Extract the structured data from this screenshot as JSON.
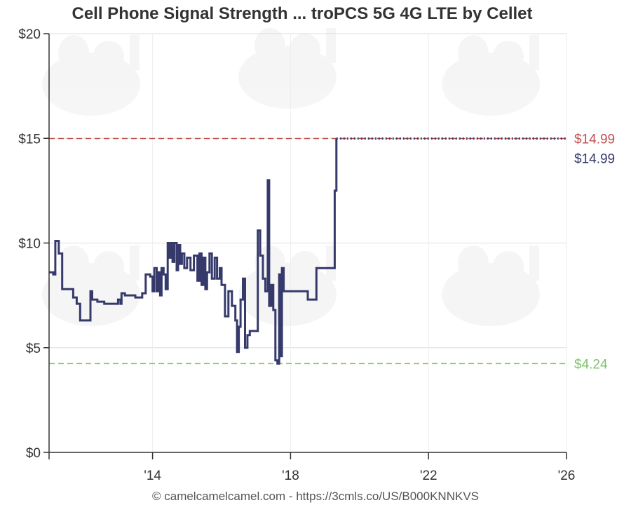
{
  "chart_data": {
    "type": "line",
    "title": "Cell Phone Signal Strength ... troPCS 5G 4G LTE by Cellet",
    "xlabel": "",
    "ylabel": "",
    "xlim": [
      2011.0,
      2026.0
    ],
    "ylim": [
      0,
      20
    ],
    "y_ticks": [
      0,
      5,
      10,
      15,
      20
    ],
    "y_tick_labels": [
      "$0",
      "$5",
      "$10",
      "$15",
      "$20"
    ],
    "x_ticks": [
      2014,
      2018,
      2022,
      2026
    ],
    "x_tick_labels": [
      "'14",
      "'18",
      "'22",
      "'26"
    ],
    "grid": true,
    "colors": {
      "series": "#363a6b",
      "highest": "#c0504d",
      "lowest": "#7dc36c",
      "current_label": "#363a6b",
      "grid": "#dddddd",
      "axis": "#333333"
    },
    "reference_lines": [
      {
        "value": 14.99,
        "label": "$14.99",
        "color": "#c0504d",
        "style": "dashed"
      },
      {
        "value": 4.24,
        "label": "$4.24",
        "color": "#7dc36c",
        "style": "dashed"
      }
    ],
    "current_price_label": "$14.99",
    "series": [
      {
        "values": [
          [
            2011.0,
            8.6
          ],
          [
            2011.12,
            8.6
          ],
          [
            2011.12,
            8.5
          ],
          [
            2011.18,
            8.5
          ],
          [
            2011.18,
            10.1
          ],
          [
            2011.28,
            10.1
          ],
          [
            2011.28,
            9.5
          ],
          [
            2011.38,
            9.5
          ],
          [
            2011.38,
            7.8
          ],
          [
            2011.7,
            7.8
          ],
          [
            2011.7,
            7.4
          ],
          [
            2011.8,
            7.4
          ],
          [
            2011.8,
            7.1
          ],
          [
            2011.9,
            7.1
          ],
          [
            2011.9,
            6.3
          ],
          [
            2012.2,
            6.3
          ],
          [
            2012.2,
            7.7
          ],
          [
            2012.25,
            7.7
          ],
          [
            2012.25,
            7.3
          ],
          [
            2012.4,
            7.3
          ],
          [
            2012.4,
            7.2
          ],
          [
            2012.6,
            7.2
          ],
          [
            2012.6,
            7.1
          ],
          [
            2013.0,
            7.1
          ],
          [
            2013.0,
            7.3
          ],
          [
            2013.07,
            7.3
          ],
          [
            2013.07,
            7.1
          ],
          [
            2013.1,
            7.1
          ],
          [
            2013.1,
            7.6
          ],
          [
            2013.2,
            7.6
          ],
          [
            2013.2,
            7.5
          ],
          [
            2013.5,
            7.5
          ],
          [
            2013.5,
            7.4
          ],
          [
            2013.7,
            7.4
          ],
          [
            2013.7,
            7.6
          ],
          [
            2013.8,
            7.6
          ],
          [
            2013.8,
            8.5
          ],
          [
            2013.93,
            8.5
          ],
          [
            2013.93,
            8.4
          ],
          [
            2014.0,
            8.4
          ],
          [
            2014.0,
            7.7
          ],
          [
            2014.05,
            7.7
          ],
          [
            2014.05,
            8.8
          ],
          [
            2014.12,
            8.8
          ],
          [
            2014.12,
            7.7
          ],
          [
            2014.17,
            7.7
          ],
          [
            2014.17,
            8.6
          ],
          [
            2014.22,
            8.6
          ],
          [
            2014.22,
            7.5
          ],
          [
            2014.26,
            7.5
          ],
          [
            2014.26,
            8.8
          ],
          [
            2014.32,
            8.8
          ],
          [
            2014.32,
            8.5
          ],
          [
            2014.38,
            8.5
          ],
          [
            2014.38,
            7.8
          ],
          [
            2014.44,
            7.8
          ],
          [
            2014.44,
            10.0
          ],
          [
            2014.48,
            10.0
          ],
          [
            2014.48,
            9.3
          ],
          [
            2014.53,
            9.3
          ],
          [
            2014.53,
            10.0
          ],
          [
            2014.58,
            10.0
          ],
          [
            2014.58,
            9.1
          ],
          [
            2014.63,
            9.1
          ],
          [
            2014.63,
            10.0
          ],
          [
            2014.7,
            10.0
          ],
          [
            2014.7,
            8.7
          ],
          [
            2014.74,
            8.7
          ],
          [
            2014.74,
            9.9
          ],
          [
            2014.8,
            9.9
          ],
          [
            2014.8,
            9.0
          ],
          [
            2014.85,
            9.0
          ],
          [
            2014.85,
            9.5
          ],
          [
            2014.92,
            9.5
          ],
          [
            2014.92,
            8.8
          ],
          [
            2015.0,
            8.8
          ],
          [
            2015.0,
            9.3
          ],
          [
            2015.1,
            9.3
          ],
          [
            2015.1,
            8.7
          ],
          [
            2015.2,
            8.7
          ],
          [
            2015.2,
            9.4
          ],
          [
            2015.3,
            9.4
          ],
          [
            2015.3,
            8.2
          ],
          [
            2015.36,
            8.2
          ],
          [
            2015.36,
            9.5
          ],
          [
            2015.42,
            9.5
          ],
          [
            2015.42,
            8.0
          ],
          [
            2015.47,
            8.0
          ],
          [
            2015.47,
            9.3
          ],
          [
            2015.53,
            9.3
          ],
          [
            2015.53,
            7.8
          ],
          [
            2015.58,
            7.8
          ],
          [
            2015.58,
            8.6
          ],
          [
            2015.65,
            8.6
          ],
          [
            2015.65,
            9.5
          ],
          [
            2015.72,
            9.5
          ],
          [
            2015.72,
            8.3
          ],
          [
            2015.8,
            8.3
          ],
          [
            2015.8,
            9.3
          ],
          [
            2015.87,
            9.3
          ],
          [
            2015.87,
            8.3
          ],
          [
            2015.95,
            8.3
          ],
          [
            2015.95,
            8.8
          ],
          [
            2016.0,
            8.8
          ],
          [
            2016.0,
            8.0
          ],
          [
            2016.1,
            8.0
          ],
          [
            2016.1,
            6.5
          ],
          [
            2016.2,
            6.5
          ],
          [
            2016.2,
            7.7
          ],
          [
            2016.3,
            7.7
          ],
          [
            2016.3,
            7.0
          ],
          [
            2016.4,
            7.0
          ],
          [
            2016.4,
            6.3
          ],
          [
            2016.45,
            6.3
          ],
          [
            2016.45,
            4.8
          ],
          [
            2016.5,
            4.8
          ],
          [
            2016.5,
            6.0
          ],
          [
            2016.55,
            6.0
          ],
          [
            2016.55,
            7.3
          ],
          [
            2016.62,
            7.3
          ],
          [
            2016.62,
            8.3
          ],
          [
            2016.68,
            8.3
          ],
          [
            2016.68,
            5.0
          ],
          [
            2016.75,
            5.0
          ],
          [
            2016.75,
            5.6
          ],
          [
            2016.82,
            5.6
          ],
          [
            2016.82,
            5.8
          ],
          [
            2017.05,
            5.8
          ],
          [
            2017.05,
            10.6
          ],
          [
            2017.12,
            10.6
          ],
          [
            2017.12,
            9.4
          ],
          [
            2017.2,
            9.4
          ],
          [
            2017.2,
            8.3
          ],
          [
            2017.27,
            8.3
          ],
          [
            2017.27,
            7.7
          ],
          [
            2017.34,
            7.7
          ],
          [
            2017.34,
            13.0
          ],
          [
            2017.38,
            13.0
          ],
          [
            2017.38,
            7.0
          ],
          [
            2017.44,
            7.0
          ],
          [
            2017.44,
            8.0
          ],
          [
            2017.5,
            8.0
          ],
          [
            2017.5,
            6.8
          ],
          [
            2017.56,
            6.8
          ],
          [
            2017.56,
            4.4
          ],
          [
            2017.62,
            4.4
          ],
          [
            2017.62,
            4.24
          ],
          [
            2017.67,
            4.24
          ],
          [
            2017.67,
            8.5
          ],
          [
            2017.71,
            8.5
          ],
          [
            2017.71,
            4.6
          ],
          [
            2017.75,
            4.6
          ],
          [
            2017.75,
            8.8
          ],
          [
            2017.8,
            8.8
          ],
          [
            2017.8,
            7.7
          ],
          [
            2018.5,
            7.7
          ],
          [
            2018.5,
            7.3
          ],
          [
            2018.75,
            7.3
          ],
          [
            2018.75,
            8.8
          ],
          [
            2019.2,
            8.8
          ],
          [
            2019.2,
            8.8
          ],
          [
            2019.28,
            8.8
          ],
          [
            2019.28,
            12.5
          ],
          [
            2019.33,
            12.5
          ],
          [
            2019.33,
            14.99
          ],
          [
            2026.0,
            14.99
          ]
        ]
      }
    ]
  },
  "footer": "© camelcamelcamel.com - https://3cmls.co/US/B000KNNKVS"
}
